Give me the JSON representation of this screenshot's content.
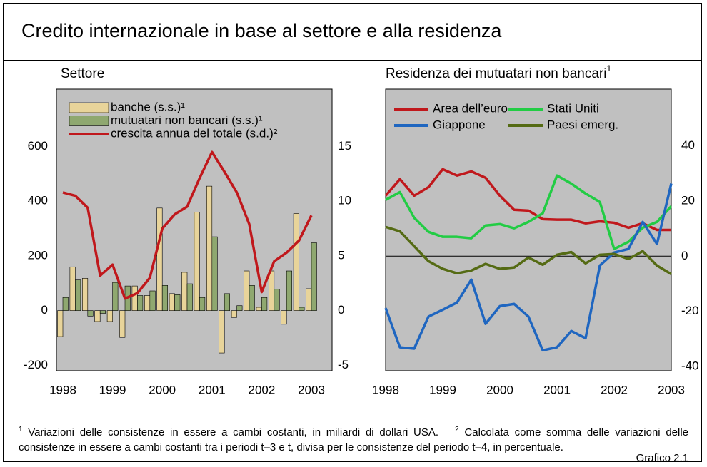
{
  "title": "Credito internazionale in base al settore e alla residenza",
  "footnotes": [
    {
      "marker": "1",
      "text": "Variazioni delle consistenze in essere a cambi costanti, in miliardi di dollari USA."
    },
    {
      "marker": "2",
      "text": "Calcolata come somma delle variazioni delle consistenze in essere a cambi costanti tra i periodi t–3 e t, divisa per le consistenze del periodo t–4, in percentuale."
    }
  ],
  "label": "Grafico 2.1",
  "chart_data": [
    {
      "type": "bar",
      "title": "Settore",
      "categories": [
        "1998",
        null,
        null,
        null,
        "1999",
        null,
        null,
        null,
        "2000",
        null,
        null,
        null,
        "2001",
        null,
        null,
        null,
        "2002",
        null,
        null,
        null,
        "2003"
      ],
      "series": [
        {
          "name": "banche (s.s.)¹",
          "color": "#e8d49a",
          "values": [
            -95,
            160,
            118,
            -40,
            -40,
            -98,
            90,
            55,
            375,
            62,
            140,
            360,
            455,
            -155,
            -25,
            145,
            12,
            145,
            -50,
            355,
            80
          ]
        },
        {
          "name": "mutuatari non bancari (s.s.)¹",
          "color": "#8fa870",
          "values": [
            48,
            112,
            -20,
            -10,
            103,
            90,
            55,
            72,
            92,
            58,
            98,
            48,
            270,
            62,
            18,
            92,
            48,
            78,
            145,
            12,
            248
          ]
        },
        {
          "name": "crescita annua del totale (s.d.)²",
          "type": "line",
          "axis": "y2",
          "color": "#c0181c",
          "values": [
            10.8,
            10.5,
            9.4,
            3.2,
            4.2,
            1.1,
            1.6,
            3.0,
            7.5,
            8.8,
            9.5,
            12.1,
            14.5,
            12.7,
            10.8,
            7.9,
            1.7,
            4.5,
            5.3,
            6.4,
            8.7
          ]
        }
      ],
      "ylim": [
        -220,
        810
      ],
      "yticks": [
        -200,
        0,
        200,
        400,
        600
      ],
      "y2lim": [
        -5.5,
        20.25
      ],
      "y2ticks": [
        -5,
        0,
        5,
        10,
        15
      ],
      "background": "#c0c0c0"
    },
    {
      "type": "line",
      "title": "Residenza dei mutuatari non bancari",
      "title_note": "1",
      "categories": [
        "1998",
        null,
        null,
        null,
        "1999",
        null,
        null,
        null,
        "2000",
        null,
        null,
        null,
        "2001",
        null,
        null,
        null,
        "2002",
        null,
        null,
        null,
        "2003"
      ],
      "series": [
        {
          "name": "Area dell’euro",
          "color": "#c0181c",
          "values": [
            21.9,
            27.9,
            21.9,
            25.0,
            31.5,
            29.2,
            30.7,
            28.4,
            21.9,
            16.8,
            16.5,
            13.4,
            13.2,
            13.2,
            11.9,
            12.6,
            12.1,
            10.3,
            11.9,
            9.5,
            9.5
          ]
        },
        {
          "name": "Stati Uniti",
          "color": "#22cc44",
          "values": [
            20.4,
            23.2,
            13.9,
            8.8,
            7.0,
            7.0,
            6.5,
            11.1,
            11.6,
            10.1,
            12.4,
            15.5,
            29.2,
            26.3,
            22.7,
            19.6,
            2.6,
            5.2,
            10.3,
            12.4,
            18.1
          ]
        },
        {
          "name": "Giappone",
          "color": "#1f66c0",
          "values": [
            -18.8,
            -33.0,
            -33.5,
            -21.9,
            -19.4,
            -16.8,
            -8.5,
            -24.5,
            -18.1,
            -17.3,
            -21.9,
            -34.1,
            -33.0,
            -27.1,
            -29.7,
            -3.4,
            1.3,
            2.6,
            12.4,
            4.4,
            26.3
          ]
        },
        {
          "name": "Paesi emerg.",
          "color": "#556b14",
          "values": [
            10.6,
            9.0,
            3.6,
            -1.8,
            -4.6,
            -6.2,
            -5.2,
            -2.8,
            -4.6,
            -4.1,
            -0.5,
            -3.1,
            0.5,
            1.5,
            -2.6,
            0.5,
            0.8,
            -1.0,
            1.8,
            -3.4,
            -6.5
          ]
        }
      ],
      "ylim": [
        -41.5,
        60.5
      ],
      "yticks": [
        -40,
        -20,
        0,
        20,
        40
      ],
      "background": "#c0c0c0"
    }
  ]
}
